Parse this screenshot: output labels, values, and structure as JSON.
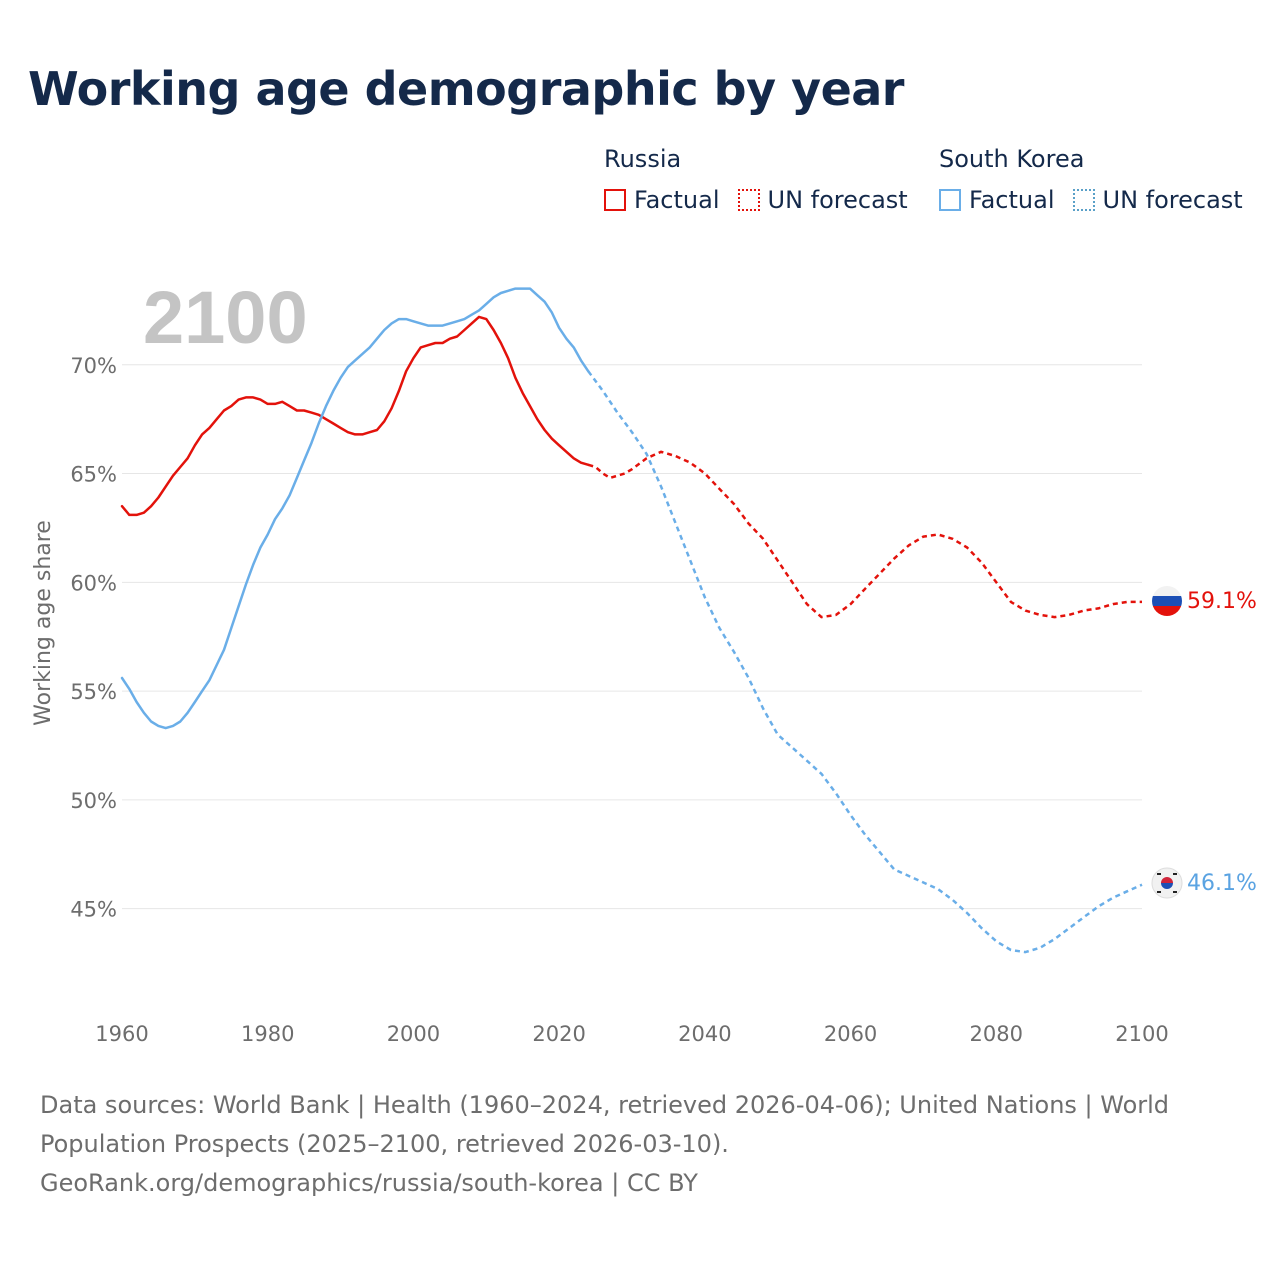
{
  "title": "Working age demographic by year",
  "legend": {
    "groups": [
      {
        "name": "Russia",
        "factual_label": "Factual",
        "forecast_label": "UN forecast",
        "color": "#e3120b"
      },
      {
        "name": "South Korea",
        "factual_label": "Factual",
        "forecast_label": "UN forecast",
        "color": "#6aaee8"
      }
    ]
  },
  "year_watermark": "2100",
  "footer": {
    "sources": "Data sources: World Bank | Health (1960–2024, retrieved 2026-04-06); United Nations | World Population Prospects (2025–2100, retrieved 2026-03-10).",
    "attribution": "GeoRank.org/demographics/russia/south-korea | CC BY"
  },
  "chart_data": {
    "type": "line",
    "title": "Working age demographic by year",
    "xlabel": "",
    "ylabel": "Working age share",
    "xlim": [
      1960,
      2100
    ],
    "ylim": [
      40.8,
      75
    ],
    "x_ticks": [
      1960,
      1980,
      2000,
      2020,
      2040,
      2060,
      2080,
      2100
    ],
    "y_ticks": [
      45,
      50,
      55,
      60,
      65,
      70
    ],
    "y_tick_labels": [
      "45%",
      "50%",
      "55%",
      "60%",
      "65%",
      "70%"
    ],
    "factual_end_year": 2024,
    "grid": true,
    "series": [
      {
        "name": "Russia",
        "color": "#e3120b",
        "end_label": "59.1%",
        "end_value": 59.1,
        "points": [
          [
            1960,
            63.5
          ],
          [
            1961,
            63.1
          ],
          [
            1962,
            63.1
          ],
          [
            1963,
            63.2
          ],
          [
            1964,
            63.5
          ],
          [
            1965,
            63.9
          ],
          [
            1966,
            64.4
          ],
          [
            1967,
            64.9
          ],
          [
            1968,
            65.3
          ],
          [
            1969,
            65.7
          ],
          [
            1970,
            66.3
          ],
          [
            1971,
            66.8
          ],
          [
            1972,
            67.1
          ],
          [
            1973,
            67.5
          ],
          [
            1974,
            67.9
          ],
          [
            1975,
            68.1
          ],
          [
            1976,
            68.4
          ],
          [
            1977,
            68.5
          ],
          [
            1978,
            68.5
          ],
          [
            1979,
            68.4
          ],
          [
            1980,
            68.2
          ],
          [
            1981,
            68.2
          ],
          [
            1982,
            68.3
          ],
          [
            1983,
            68.1
          ],
          [
            1984,
            67.9
          ],
          [
            1985,
            67.9
          ],
          [
            1986,
            67.8
          ],
          [
            1987,
            67.7
          ],
          [
            1988,
            67.5
          ],
          [
            1989,
            67.3
          ],
          [
            1990,
            67.1
          ],
          [
            1991,
            66.9
          ],
          [
            1992,
            66.8
          ],
          [
            1993,
            66.8
          ],
          [
            1994,
            66.9
          ],
          [
            1995,
            67.0
          ],
          [
            1996,
            67.4
          ],
          [
            1997,
            68.0
          ],
          [
            1998,
            68.8
          ],
          [
            1999,
            69.7
          ],
          [
            2000,
            70.3
          ],
          [
            2001,
            70.8
          ],
          [
            2002,
            70.9
          ],
          [
            2003,
            71.0
          ],
          [
            2004,
            71.0
          ],
          [
            2005,
            71.2
          ],
          [
            2006,
            71.3
          ],
          [
            2007,
            71.6
          ],
          [
            2008,
            71.9
          ],
          [
            2009,
            72.2
          ],
          [
            2010,
            72.1
          ],
          [
            2011,
            71.6
          ],
          [
            2012,
            71.0
          ],
          [
            2013,
            70.3
          ],
          [
            2014,
            69.4
          ],
          [
            2015,
            68.7
          ],
          [
            2016,
            68.1
          ],
          [
            2017,
            67.5
          ],
          [
            2018,
            67.0
          ],
          [
            2019,
            66.6
          ],
          [
            2020,
            66.3
          ],
          [
            2021,
            66.0
          ],
          [
            2022,
            65.7
          ],
          [
            2023,
            65.5
          ],
          [
            2024,
            65.4
          ],
          [
            2025,
            65.3
          ],
          [
            2026,
            65.0
          ],
          [
            2027,
            64.8
          ],
          [
            2028,
            64.9
          ],
          [
            2029,
            65.0
          ],
          [
            2030,
            65.2
          ],
          [
            2032,
            65.7
          ],
          [
            2034,
            66.0
          ],
          [
            2036,
            65.8
          ],
          [
            2038,
            65.5
          ],
          [
            2040,
            65.0
          ],
          [
            2042,
            64.3
          ],
          [
            2044,
            63.6
          ],
          [
            2046,
            62.7
          ],
          [
            2048,
            62.0
          ],
          [
            2050,
            61.0
          ],
          [
            2052,
            60.0
          ],
          [
            2054,
            59.0
          ],
          [
            2056,
            58.4
          ],
          [
            2058,
            58.5
          ],
          [
            2060,
            59.0
          ],
          [
            2062,
            59.7
          ],
          [
            2064,
            60.4
          ],
          [
            2066,
            61.1
          ],
          [
            2068,
            61.7
          ],
          [
            2070,
            62.1
          ],
          [
            2072,
            62.2
          ],
          [
            2074,
            62.0
          ],
          [
            2076,
            61.6
          ],
          [
            2078,
            60.9
          ],
          [
            2080,
            60.0
          ],
          [
            2082,
            59.1
          ],
          [
            2084,
            58.7
          ],
          [
            2086,
            58.5
          ],
          [
            2088,
            58.4
          ],
          [
            2090,
            58.5
          ],
          [
            2092,
            58.7
          ],
          [
            2094,
            58.8
          ],
          [
            2096,
            59.0
          ],
          [
            2098,
            59.1
          ],
          [
            2100,
            59.1
          ]
        ]
      },
      {
        "name": "South Korea",
        "color": "#6aaee8",
        "end_label": "46.1%",
        "end_value": 46.1,
        "points": [
          [
            1960,
            55.6
          ],
          [
            1961,
            55.1
          ],
          [
            1962,
            54.5
          ],
          [
            1963,
            54.0
          ],
          [
            1964,
            53.6
          ],
          [
            1965,
            53.4
          ],
          [
            1966,
            53.3
          ],
          [
            1967,
            53.4
          ],
          [
            1968,
            53.6
          ],
          [
            1969,
            54.0
          ],
          [
            1970,
            54.5
          ],
          [
            1971,
            55.0
          ],
          [
            1972,
            55.5
          ],
          [
            1973,
            56.2
          ],
          [
            1974,
            56.9
          ],
          [
            1975,
            57.9
          ],
          [
            1976,
            58.9
          ],
          [
            1977,
            59.9
          ],
          [
            1978,
            60.8
          ],
          [
            1979,
            61.6
          ],
          [
            1980,
            62.2
          ],
          [
            1981,
            62.9
          ],
          [
            1982,
            63.4
          ],
          [
            1983,
            64.0
          ],
          [
            1984,
            64.8
          ],
          [
            1985,
            65.6
          ],
          [
            1986,
            66.4
          ],
          [
            1987,
            67.3
          ],
          [
            1988,
            68.1
          ],
          [
            1989,
            68.8
          ],
          [
            1990,
            69.4
          ],
          [
            1991,
            69.9
          ],
          [
            1992,
            70.2
          ],
          [
            1993,
            70.5
          ],
          [
            1994,
            70.8
          ],
          [
            1995,
            71.2
          ],
          [
            1996,
            71.6
          ],
          [
            1997,
            71.9
          ],
          [
            1998,
            72.1
          ],
          [
            1999,
            72.1
          ],
          [
            2000,
            72.0
          ],
          [
            2001,
            71.9
          ],
          [
            2002,
            71.8
          ],
          [
            2003,
            71.8
          ],
          [
            2004,
            71.8
          ],
          [
            2005,
            71.9
          ],
          [
            2006,
            72.0
          ],
          [
            2007,
            72.1
          ],
          [
            2008,
            72.3
          ],
          [
            2009,
            72.5
          ],
          [
            2010,
            72.8
          ],
          [
            2011,
            73.1
          ],
          [
            2012,
            73.3
          ],
          [
            2013,
            73.4
          ],
          [
            2014,
            73.5
          ],
          [
            2015,
            73.5
          ],
          [
            2016,
            73.5
          ],
          [
            2017,
            73.2
          ],
          [
            2018,
            72.9
          ],
          [
            2019,
            72.4
          ],
          [
            2020,
            71.7
          ],
          [
            2021,
            71.2
          ],
          [
            2022,
            70.8
          ],
          [
            2023,
            70.2
          ],
          [
            2024,
            69.7
          ],
          [
            2026,
            68.8
          ],
          [
            2028,
            67.8
          ],
          [
            2030,
            66.9
          ],
          [
            2032,
            65.9
          ],
          [
            2034,
            64.4
          ],
          [
            2036,
            62.7
          ],
          [
            2038,
            61.0
          ],
          [
            2040,
            59.3
          ],
          [
            2042,
            57.9
          ],
          [
            2044,
            56.8
          ],
          [
            2046,
            55.6
          ],
          [
            2048,
            54.2
          ],
          [
            2050,
            53.0
          ],
          [
            2052,
            52.4
          ],
          [
            2054,
            51.8
          ],
          [
            2056,
            51.2
          ],
          [
            2058,
            50.3
          ],
          [
            2060,
            49.3
          ],
          [
            2062,
            48.4
          ],
          [
            2064,
            47.6
          ],
          [
            2066,
            46.8
          ],
          [
            2068,
            46.5
          ],
          [
            2070,
            46.2
          ],
          [
            2072,
            45.9
          ],
          [
            2074,
            45.4
          ],
          [
            2076,
            44.8
          ],
          [
            2078,
            44.1
          ],
          [
            2080,
            43.5
          ],
          [
            2082,
            43.1
          ],
          [
            2084,
            43.0
          ],
          [
            2086,
            43.2
          ],
          [
            2088,
            43.6
          ],
          [
            2090,
            44.1
          ],
          [
            2092,
            44.6
          ],
          [
            2094,
            45.1
          ],
          [
            2096,
            45.5
          ],
          [
            2098,
            45.8
          ],
          [
            2100,
            46.1
          ]
        ]
      }
    ]
  }
}
